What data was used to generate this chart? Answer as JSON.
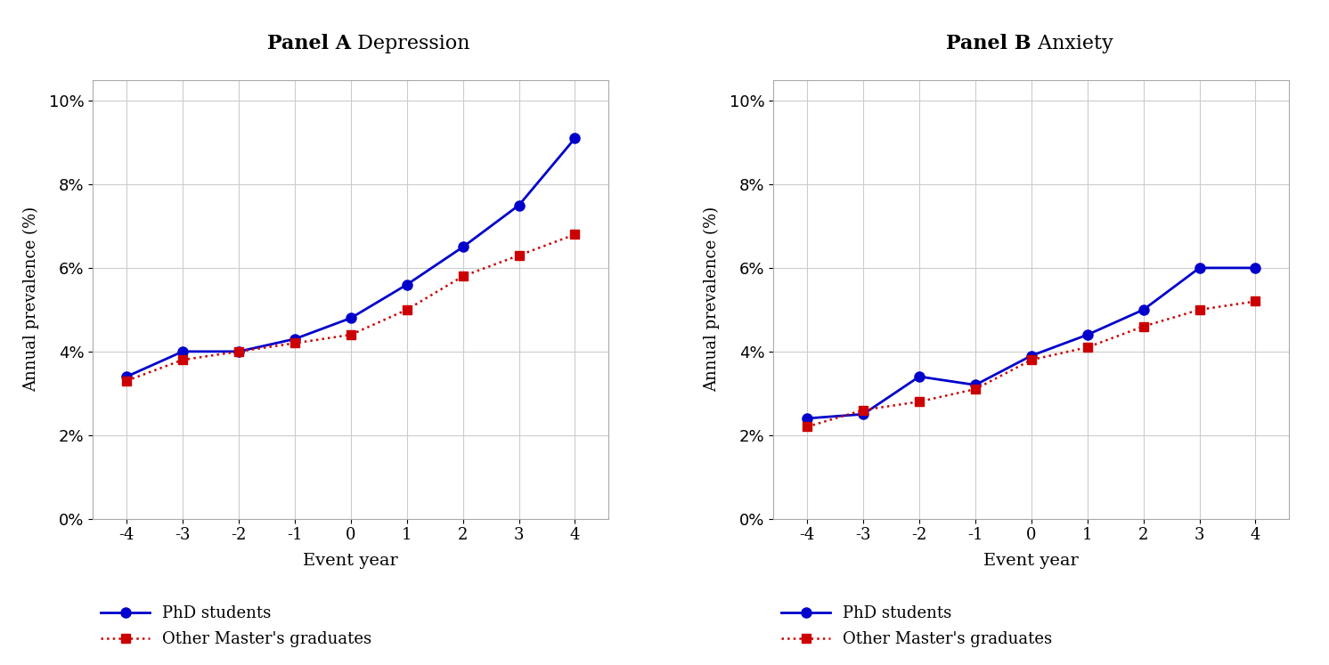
{
  "event_years": [
    -4,
    -3,
    -2,
    -1,
    0,
    1,
    2,
    3,
    4
  ],
  "panel_a": {
    "title_bold": "Panel A",
    "title_normal": " Depression",
    "phd": [
      0.034,
      0.04,
      0.04,
      0.043,
      0.048,
      0.056,
      0.065,
      0.075,
      0.091
    ],
    "masters": [
      0.033,
      0.038,
      0.04,
      0.042,
      0.044,
      0.05,
      0.058,
      0.063,
      0.068
    ],
    "ylabel": "Annual prevalence (%)",
    "xlabel": "Event year",
    "ylim": [
      0.0,
      0.105
    ],
    "yticks": [
      0.0,
      0.02,
      0.04,
      0.06,
      0.08,
      0.1
    ]
  },
  "panel_b": {
    "title_bold": "Panel B",
    "title_normal": " Anxiety",
    "phd": [
      0.024,
      0.025,
      0.034,
      0.032,
      0.039,
      0.044,
      0.05,
      0.06,
      0.06
    ],
    "masters": [
      0.022,
      0.026,
      0.028,
      0.031,
      0.038,
      0.041,
      0.046,
      0.05,
      0.052
    ],
    "ylabel": "Annual prevalence (%)",
    "xlabel": "Event year",
    "ylim": [
      0.0,
      0.105
    ],
    "yticks": [
      0.0,
      0.02,
      0.04,
      0.06,
      0.08,
      0.1
    ]
  },
  "phd_color": "#0000CC",
  "masters_color": "#CC0000",
  "phd_label": "PhD students",
  "masters_label": "Other Master's graduates",
  "background_color": "#ffffff",
  "grid_color": "#cccccc",
  "spine_color": "#aaaaaa"
}
